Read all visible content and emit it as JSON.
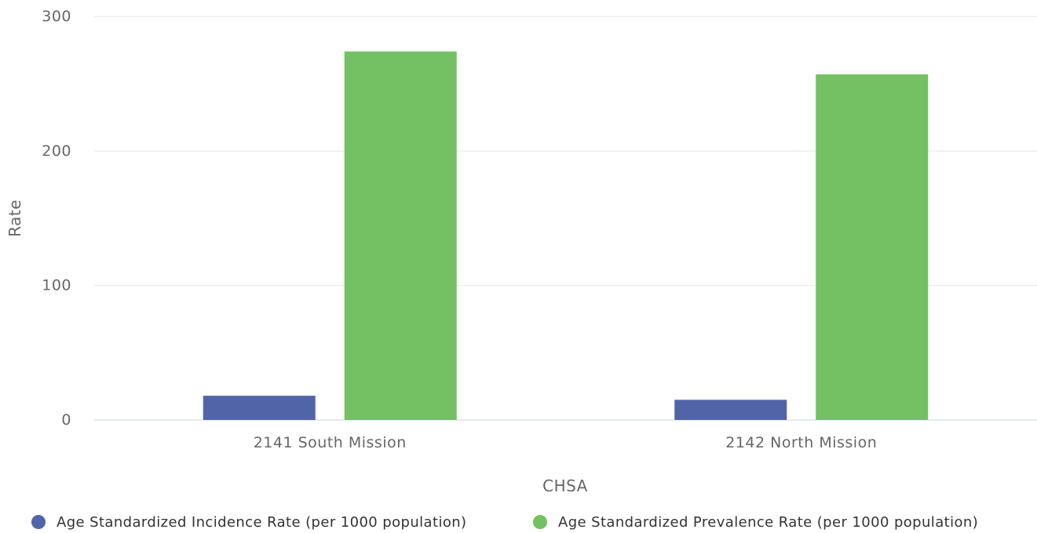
{
  "chart_data": {
    "type": "bar",
    "categories": [
      "2141 South Mission",
      "2142 North Mission"
    ],
    "series": [
      {
        "name": "Age Standardized Incidence Rate (per 1000 population)",
        "color": "#5264a8",
        "values": [
          18,
          15
        ]
      },
      {
        "name": "Age Standardized Prevalence Rate (per 1000 population)",
        "color": "#74c163",
        "values": [
          274,
          257
        ]
      }
    ],
    "xlabel": "CHSA",
    "ylabel": "Rate",
    "ylim": [
      0,
      300
    ],
    "yticks": [
      "0",
      "100",
      "200",
      "300"
    ],
    "grid": true,
    "legend_position": "bottom"
  }
}
